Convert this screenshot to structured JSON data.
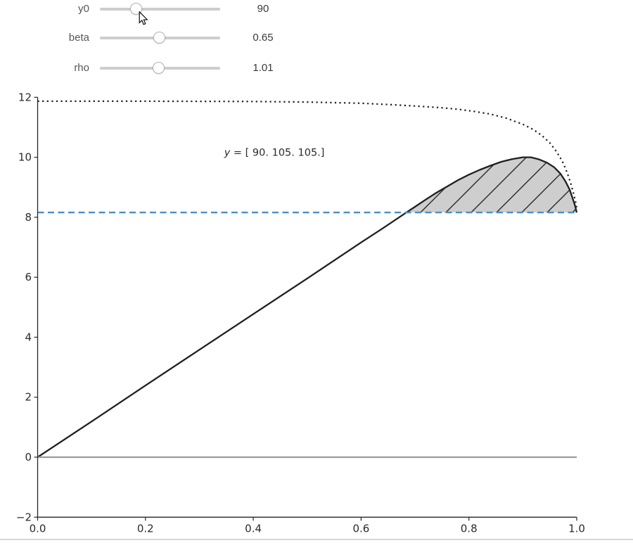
{
  "widgets": {
    "sliders": [
      {
        "label": "y0",
        "value": "90",
        "fraction": 0.28
      },
      {
        "label": "beta",
        "value": "0.65",
        "fraction": 0.49
      },
      {
        "label": "rho",
        "value": "1.01",
        "fraction": 0.485
      }
    ]
  },
  "chart_data": {
    "type": "line",
    "title": "",
    "xlabel": "",
    "ylabel": "",
    "xlim": [
      0.0,
      1.0
    ],
    "ylim": [
      -2,
      12
    ],
    "grid": false,
    "legend": "none",
    "x_ticks": [
      {
        "v": 0.0,
        "label": "0.0"
      },
      {
        "v": 0.2,
        "label": "0.2"
      },
      {
        "v": 0.4,
        "label": "0.4"
      },
      {
        "v": 0.6,
        "label": "0.6"
      },
      {
        "v": 0.8,
        "label": "0.8"
      },
      {
        "v": 1.0,
        "label": "1.0"
      }
    ],
    "y_ticks": [
      {
        "v": -2,
        "label": "−2"
      },
      {
        "v": 0,
        "label": "0"
      },
      {
        "v": 2,
        "label": "2"
      },
      {
        "v": 4,
        "label": "4"
      },
      {
        "v": 6,
        "label": "6"
      },
      {
        "v": 8,
        "label": "8"
      },
      {
        "v": 10,
        "label": "10"
      },
      {
        "v": 12,
        "label": "12"
      }
    ],
    "annotation": {
      "var": "y",
      "rest": " = [ 90. 105. 105.]",
      "x": 0.346,
      "y": 10.17
    },
    "colors": {
      "curve_black": "#1f1f1f",
      "steady_blue": "#4b8ec6",
      "zero_gray": "#9a9a9a",
      "fill_gray": "#cecece",
      "hatch_dark": "#2e2e2e",
      "axis": "#262626"
    },
    "series": [
      {
        "name": "frontier",
        "style": "dotted",
        "color": "#1f1f1f",
        "width": 2.2,
        "points": [
          [
            0,
            11.87
          ],
          [
            0.2,
            11.87
          ],
          [
            0.4,
            11.86
          ],
          [
            0.5,
            11.84
          ],
          [
            0.6,
            11.8
          ],
          [
            0.65,
            11.76
          ],
          [
            0.7,
            11.71
          ],
          [
            0.75,
            11.65
          ],
          [
            0.78,
            11.6
          ],
          [
            0.81,
            11.53
          ],
          [
            0.84,
            11.44
          ],
          [
            0.87,
            11.3
          ],
          [
            0.9,
            11.1
          ],
          [
            0.92,
            10.92
          ],
          [
            0.935,
            10.73
          ],
          [
            0.95,
            10.48
          ],
          [
            0.962,
            10.2
          ],
          [
            0.973,
            9.88
          ],
          [
            0.982,
            9.5
          ],
          [
            0.989,
            9.12
          ],
          [
            0.994,
            8.8
          ],
          [
            0.998,
            8.5
          ],
          [
            1.0,
            8.3
          ]
        ]
      },
      {
        "name": "path",
        "style": "solid",
        "color": "#1f1f1f",
        "width": 2.3,
        "points": [
          [
            0,
            0
          ],
          [
            0.1,
            1.19
          ],
          [
            0.2,
            2.39
          ],
          [
            0.3,
            3.58
          ],
          [
            0.4,
            4.77
          ],
          [
            0.5,
            5.96
          ],
          [
            0.6,
            7.16
          ],
          [
            0.64,
            7.63
          ],
          [
            0.684,
            8.16
          ],
          [
            0.7,
            8.35
          ],
          [
            0.72,
            8.59
          ],
          [
            0.74,
            8.82
          ],
          [
            0.76,
            9.03
          ],
          [
            0.78,
            9.24
          ],
          [
            0.8,
            9.42
          ],
          [
            0.82,
            9.58
          ],
          [
            0.84,
            9.72
          ],
          [
            0.86,
            9.85
          ],
          [
            0.88,
            9.94
          ],
          [
            0.9,
            10.0
          ],
          [
            0.915,
            10.0
          ],
          [
            0.93,
            9.93
          ],
          [
            0.945,
            9.82
          ],
          [
            0.958,
            9.67
          ],
          [
            0.97,
            9.45
          ],
          [
            0.979,
            9.2
          ],
          [
            0.987,
            8.92
          ],
          [
            0.993,
            8.6
          ],
          [
            0.997,
            8.38
          ],
          [
            1.0,
            8.16
          ]
        ]
      },
      {
        "name": "steady-state-level",
        "style": "dashed",
        "color": "#4b8ec6",
        "width": 2.4,
        "points": [
          [
            0,
            8.16
          ],
          [
            1.0,
            8.16
          ]
        ]
      },
      {
        "name": "zero-line",
        "style": "solid",
        "color": "#9a9a9a",
        "width": 2.3,
        "points": [
          [
            0,
            0
          ],
          [
            1.0,
            0
          ]
        ]
      }
    ],
    "fill_region": {
      "name": "hatched-overshoot-region",
      "hatch": "/",
      "baseline": 8.16,
      "points": [
        [
          0.684,
          8.16
        ],
        [
          0.7,
          8.35
        ],
        [
          0.72,
          8.59
        ],
        [
          0.74,
          8.82
        ],
        [
          0.76,
          9.03
        ],
        [
          0.78,
          9.24
        ],
        [
          0.8,
          9.42
        ],
        [
          0.82,
          9.58
        ],
        [
          0.84,
          9.72
        ],
        [
          0.86,
          9.85
        ],
        [
          0.88,
          9.94
        ],
        [
          0.9,
          10.0
        ],
        [
          0.915,
          10.0
        ],
        [
          0.93,
          9.93
        ],
        [
          0.945,
          9.82
        ],
        [
          0.958,
          9.67
        ],
        [
          0.97,
          9.45
        ],
        [
          0.979,
          9.2
        ],
        [
          0.987,
          8.92
        ],
        [
          0.993,
          8.6
        ],
        [
          0.997,
          8.38
        ],
        [
          1.0,
          8.16
        ]
      ]
    }
  }
}
